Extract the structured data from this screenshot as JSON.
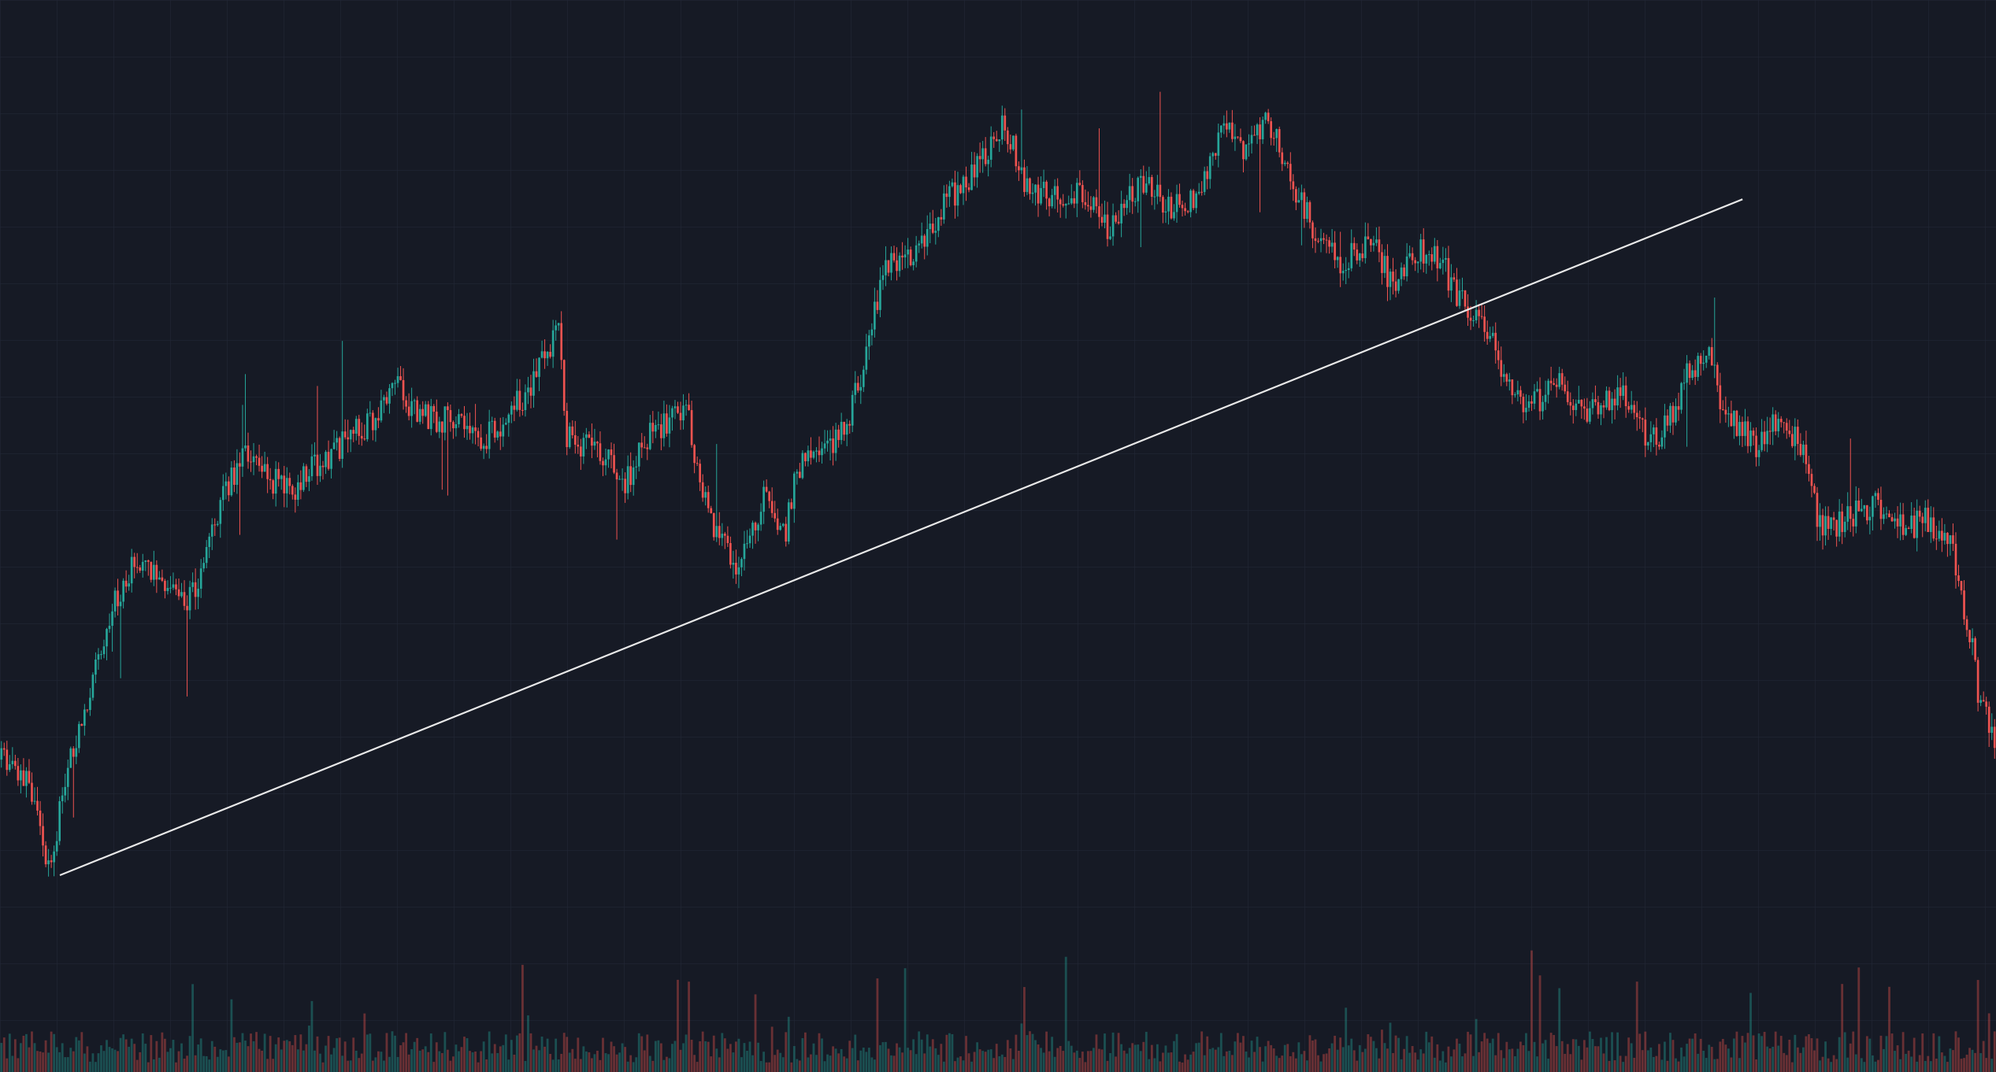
{
  "chart_data": {
    "type": "candlestick",
    "title": "",
    "xlabel": "",
    "ylabel": "",
    "grid": true,
    "legend": "none",
    "ylim": [
      0,
      100
    ],
    "colors": {
      "background": "#161a25",
      "grid": "#242938",
      "up": "#26a69a",
      "down": "#ef5350",
      "trendline": "#e8e8e8"
    },
    "price_path": [
      [
        0,
        23
      ],
      [
        1.5,
        20
      ],
      [
        2.4,
        10
      ],
      [
        3.4,
        22
      ],
      [
        4.2,
        28
      ],
      [
        5.6,
        40
      ],
      [
        6.9,
        46
      ],
      [
        8.3,
        43
      ],
      [
        9.3,
        40
      ],
      [
        10.2,
        45
      ],
      [
        11.4,
        54
      ],
      [
        12.6,
        58
      ],
      [
        13.3,
        55
      ],
      [
        14.5,
        53
      ],
      [
        15.8,
        56
      ],
      [
        18.5,
        61
      ],
      [
        19.8,
        65
      ],
      [
        20.8,
        62
      ],
      [
        22.5,
        61
      ],
      [
        24.3,
        59
      ],
      [
        26.3,
        64
      ],
      [
        28.0,
        71
      ],
      [
        28.4,
        59
      ],
      [
        30.0,
        58
      ],
      [
        31.3,
        54
      ],
      [
        32.7,
        60
      ],
      [
        34.4,
        62
      ],
      [
        35.5,
        50
      ],
      [
        37.0,
        45
      ],
      [
        38.4,
        53
      ],
      [
        39.3,
        48
      ],
      [
        40.0,
        56
      ],
      [
        42.3,
        60
      ],
      [
        43.4,
        68
      ],
      [
        44.3,
        79
      ],
      [
        45.8,
        79
      ],
      [
        47.1,
        85
      ],
      [
        48.3,
        88
      ],
      [
        49.2,
        90
      ],
      [
        50.3,
        95
      ],
      [
        51.5,
        87
      ],
      [
        53.0,
        86
      ],
      [
        54.2,
        87
      ],
      [
        55.5,
        83
      ],
      [
        57.2,
        88
      ],
      [
        58.8,
        85
      ],
      [
        60.1,
        87
      ],
      [
        61.5,
        95
      ],
      [
        62.4,
        91
      ],
      [
        63.5,
        95
      ],
      [
        64.4,
        90
      ],
      [
        65.9,
        82
      ],
      [
        67.2,
        79
      ],
      [
        68.8,
        81
      ],
      [
        69.8,
        76
      ],
      [
        71.1,
        80
      ],
      [
        72.2,
        79
      ],
      [
        73.3,
        74
      ],
      [
        74.8,
        70
      ],
      [
        75.8,
        64
      ],
      [
        76.9,
        63
      ],
      [
        78.2,
        65
      ],
      [
        79.8,
        62
      ],
      [
        81.3,
        64
      ],
      [
        82.5,
        59
      ],
      [
        83.2,
        59
      ],
      [
        84.5,
        66
      ],
      [
        85.7,
        68
      ],
      [
        86.5,
        61
      ],
      [
        87.5,
        60
      ],
      [
        88.0,
        57
      ],
      [
        88.8,
        61
      ],
      [
        90.1,
        59
      ],
      [
        90.8,
        53
      ],
      [
        91.2,
        49
      ],
      [
        92.6,
        50
      ],
      [
        93.9,
        52
      ],
      [
        95.3,
        49
      ],
      [
        96.6,
        50
      ],
      [
        97.8,
        47
      ],
      [
        98.7,
        37
      ],
      [
        99.2,
        29
      ],
      [
        100,
        25
      ]
    ],
    "trendline": {
      "start": [
        3.0,
        10
      ],
      "end": [
        87.3,
        86
      ]
    }
  }
}
